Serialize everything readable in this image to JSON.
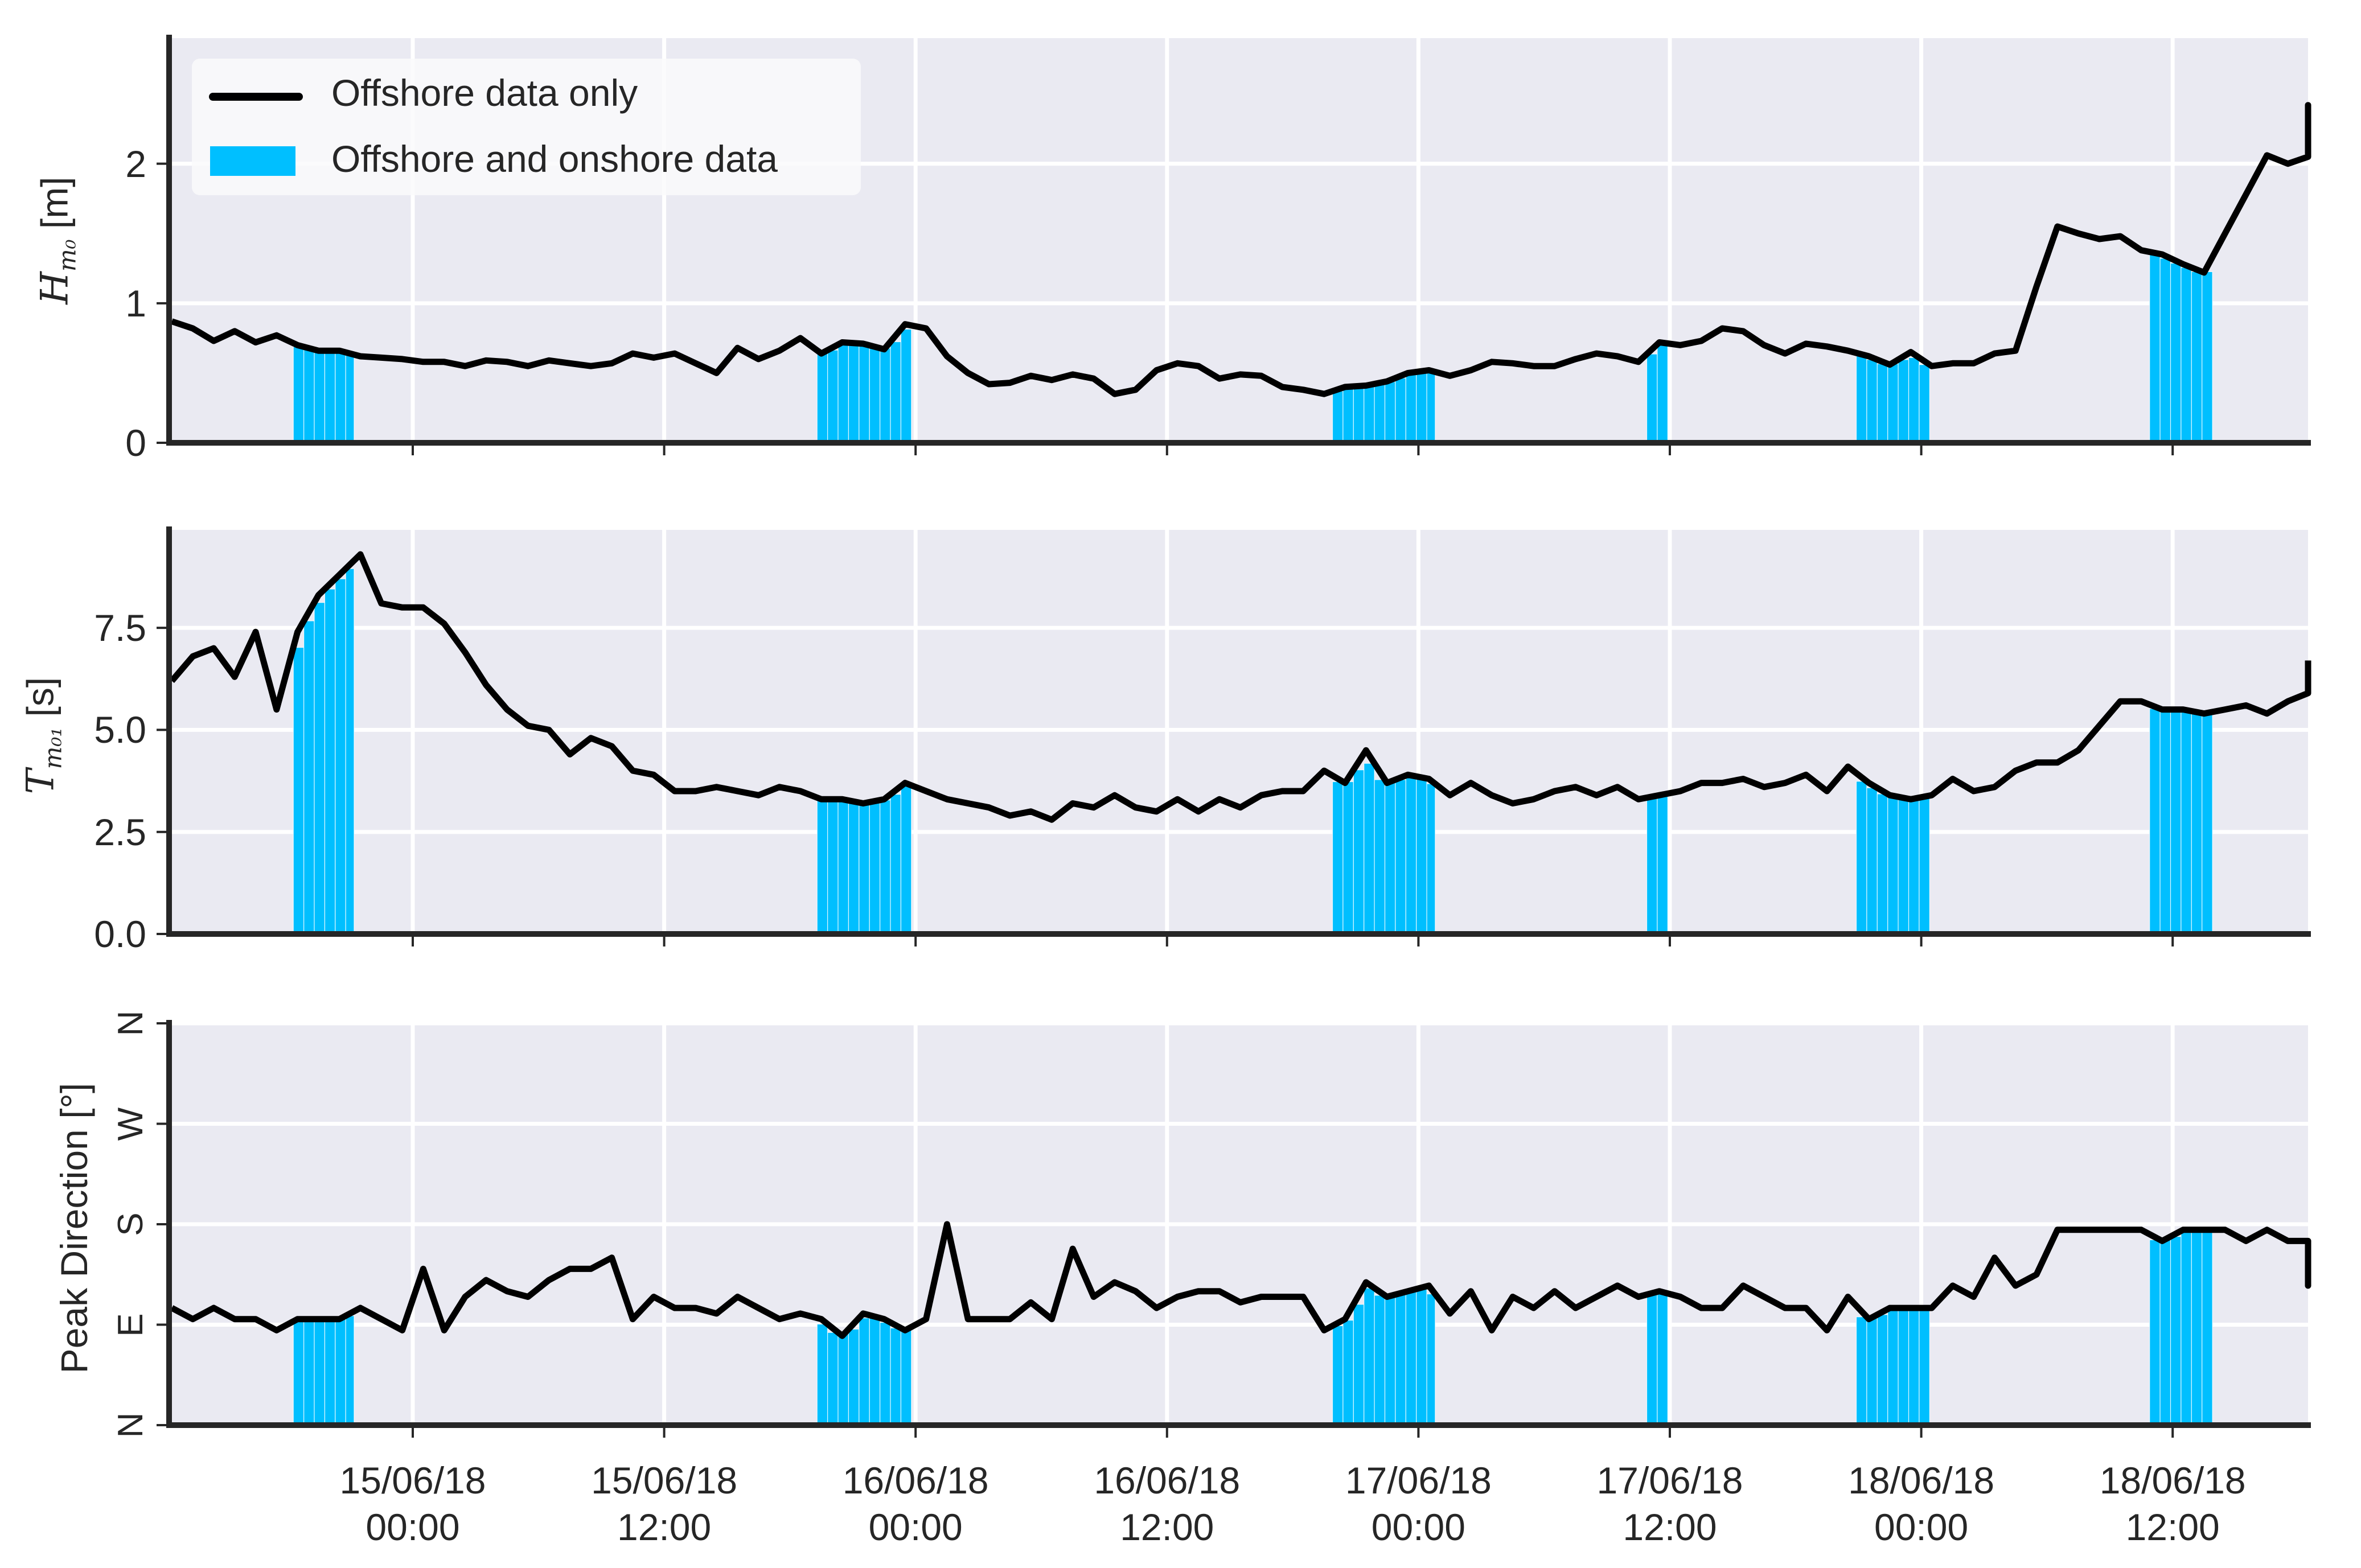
{
  "figure": {
    "background": "#ffffff",
    "axes_facecolor": "#EAEAF2",
    "grid_color": "#ffffff",
    "spine_color": "#262626",
    "line_color": "#000000",
    "onshore_color": "#00BFFF"
  },
  "legend": {
    "items": [
      {
        "label": "Offshore data only",
        "type": "line",
        "color": "#000000"
      },
      {
        "label": "Offshore and onshore data",
        "type": "patch",
        "color": "#00BFFF"
      }
    ]
  },
  "xaxis": {
    "tick_labels": [
      {
        "date": "15/06/18",
        "time": "00:00",
        "hours": 0
      },
      {
        "date": "15/06/18",
        "time": "12:00",
        "hours": 12
      },
      {
        "date": "16/06/18",
        "time": "00:00",
        "hours": 24
      },
      {
        "date": "16/06/18",
        "time": "12:00",
        "hours": 36
      },
      {
        "date": "17/06/18",
        "time": "00:00",
        "hours": 48
      },
      {
        "date": "17/06/18",
        "time": "12:00",
        "hours": 60
      },
      {
        "date": "18/06/18",
        "time": "00:00",
        "hours": 72
      },
      {
        "date": "18/06/18",
        "time": "12:00",
        "hours": 84
      }
    ]
  },
  "chart_data": [
    {
      "type": "line",
      "title": "",
      "ylabel": "H_m0 [m]",
      "ylabel_parts": {
        "symbol": "H",
        "sub": "m₀",
        "unit": "[m]"
      },
      "xlabel": "",
      "x_reference": "hours since 15/06/18 00:00",
      "x_start": -11.5,
      "x_step": 1.0,
      "xlim": [
        -11.65,
        90.5
      ],
      "ylim": [
        0,
        2.9
      ],
      "yticks": [
        0,
        1,
        2
      ],
      "ytick_labels": [
        "0",
        "1",
        "2"
      ],
      "grid": true,
      "legend_position": "upper left",
      "series": [
        {
          "name": "Offshore data only",
          "values": [
            0.87,
            0.82,
            0.73,
            0.8,
            0.72,
            0.77,
            0.7,
            0.66,
            0.66,
            0.62,
            0.61,
            0.6,
            0.58,
            0.58,
            0.55,
            0.59,
            0.58,
            0.55,
            0.59,
            0.57,
            0.55,
            0.57,
            0.64,
            0.61,
            0.64,
            0.57,
            0.5,
            0.68,
            0.6,
            0.66,
            0.75,
            0.64,
            0.72,
            0.71,
            0.67,
            0.85,
            0.82,
            0.62,
            0.5,
            0.42,
            0.43,
            0.48,
            0.45,
            0.49,
            0.46,
            0.35,
            0.38,
            0.52,
            0.57,
            0.55,
            0.46,
            0.49,
            0.48,
            0.4,
            0.38,
            0.35,
            0.4,
            0.41,
            0.44,
            0.5,
            0.52,
            0.48,
            0.52,
            0.58,
            0.57,
            0.55,
            0.55,
            0.6,
            0.64,
            0.62,
            0.58,
            0.72,
            0.7,
            0.73,
            0.82,
            0.8,
            0.7,
            0.64,
            0.71,
            0.69,
            0.66,
            0.62,
            0.56,
            0.65,
            0.55,
            0.57,
            0.57,
            0.64,
            0.66,
            1.12,
            1.55,
            1.5,
            1.46,
            1.48,
            1.38,
            1.35,
            1.28,
            1.22,
            1.5,
            1.78,
            2.06,
            2.0,
            2.05,
            2.42,
            2.22
          ]
        }
      ],
      "onshore_intervals_hours": [
        [
          -5.7,
          -2.8
        ],
        [
          19.3,
          23.8
        ],
        [
          43.9,
          48.8
        ],
        [
          58.9,
          59.9
        ],
        [
          68.9,
          72.4
        ],
        [
          82.9,
          85.9
        ]
      ]
    },
    {
      "type": "line",
      "title": "",
      "ylabel": "T_m01 [s]",
      "ylabel_parts": {
        "symbol": "T",
        "sub": "m₀₁",
        "unit": "[s]"
      },
      "xlabel": "",
      "x_reference": "hours since 15/06/18 00:00",
      "x_start": -11.5,
      "x_step": 1.0,
      "xlim": [
        -11.65,
        90.5
      ],
      "ylim": [
        0,
        9.9
      ],
      "yticks": [
        0,
        2.5,
        5.0,
        7.5
      ],
      "ytick_labels": [
        "0.0",
        "2.5",
        "5.0",
        "7.5"
      ],
      "grid": true,
      "series": [
        {
          "name": "Offshore data only",
          "values": [
            6.2,
            6.8,
            7.0,
            6.3,
            7.4,
            5.5,
            7.4,
            8.3,
            8.8,
            9.3,
            8.1,
            8.0,
            8.0,
            7.6,
            6.9,
            6.1,
            5.5,
            5.1,
            5.0,
            4.4,
            4.8,
            4.6,
            4.0,
            3.9,
            3.5,
            3.5,
            3.6,
            3.5,
            3.4,
            3.6,
            3.5,
            3.3,
            3.3,
            3.2,
            3.3,
            3.7,
            3.5,
            3.3,
            3.2,
            3.1,
            2.9,
            3.0,
            2.8,
            3.2,
            3.1,
            3.4,
            3.1,
            3.0,
            3.3,
            3.0,
            3.3,
            3.1,
            3.4,
            3.5,
            3.5,
            4.0,
            3.7,
            4.5,
            3.7,
            3.9,
            3.8,
            3.4,
            3.7,
            3.4,
            3.2,
            3.3,
            3.5,
            3.6,
            3.4,
            3.6,
            3.3,
            3.4,
            3.5,
            3.7,
            3.7,
            3.8,
            3.6,
            3.7,
            3.9,
            3.5,
            4.1,
            3.7,
            3.4,
            3.3,
            3.4,
            3.8,
            3.5,
            3.6,
            4.0,
            4.2,
            4.2,
            4.5,
            5.1,
            5.7,
            5.7,
            5.5,
            5.5,
            5.4,
            5.5,
            5.6,
            5.4,
            5.7,
            5.9,
            6.3,
            6.7
          ]
        }
      ],
      "onshore_intervals_hours": [
        [
          -5.7,
          -2.8
        ],
        [
          19.3,
          23.8
        ],
        [
          43.9,
          48.8
        ],
        [
          58.9,
          59.9
        ],
        [
          68.9,
          72.4
        ],
        [
          82.9,
          85.9
        ]
      ]
    },
    {
      "type": "line",
      "title": "",
      "ylabel": "Peak Direction [°]",
      "xlabel": "",
      "x_reference": "hours since 15/06/18 00:00",
      "x_start": -11.5,
      "x_step": 1.0,
      "xlim": [
        -11.65,
        90.5
      ],
      "ylim": [
        0,
        360
      ],
      "yticks": [
        0,
        90,
        180,
        270,
        360
      ],
      "ytick_labels": [
        "N",
        "E",
        "S",
        "W",
        "N"
      ],
      "grid": true,
      "series": [
        {
          "name": "Offshore data only",
          "values": [
            105,
            95,
            105,
            95,
            95,
            85,
            95,
            95,
            95,
            105,
            95,
            85,
            140,
            85,
            115,
            130,
            120,
            115,
            130,
            140,
            140,
            150,
            95,
            115,
            105,
            105,
            100,
            115,
            105,
            95,
            100,
            95,
            80,
            100,
            95,
            85,
            95,
            180,
            95,
            95,
            95,
            110,
            95,
            158,
            115,
            128,
            120,
            105,
            115,
            120,
            120,
            110,
            115,
            115,
            115,
            85,
            95,
            128,
            115,
            120,
            125,
            100,
            120,
            85,
            115,
            105,
            120,
            105,
            115,
            125,
            115,
            120,
            115,
            105,
            105,
            125,
            115,
            105,
            105,
            85,
            115,
            95,
            105,
            105,
            105,
            125,
            115,
            150,
            125,
            135,
            175,
            175,
            175,
            175,
            175,
            165,
            175,
            175,
            175,
            165,
            175,
            165,
            165,
            125,
            150,
            165,
            155
          ]
        }
      ],
      "onshore_intervals_hours": [
        [
          -5.7,
          -2.8
        ],
        [
          19.3,
          23.8
        ],
        [
          43.9,
          48.8
        ],
        [
          58.9,
          59.9
        ],
        [
          68.9,
          72.4
        ],
        [
          82.9,
          85.9
        ]
      ]
    }
  ]
}
